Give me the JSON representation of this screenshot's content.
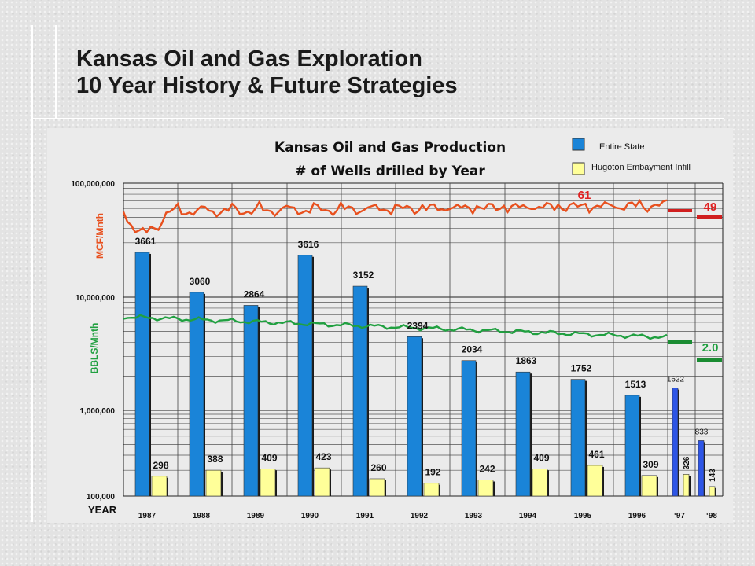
{
  "slide": {
    "title_line1": "Kansas Oil and Gas Exploration",
    "title_line2": "10 Year History & Future Strategies"
  },
  "chart_data": {
    "type": "bar",
    "title": "Kansas Oil and Gas Production",
    "subtitle": "# of Wells drilled by Year",
    "xlabel": "YEAR",
    "ylabel_gas": "MCF/Mnth",
    "ylabel_oil": "BBLS/Mnth",
    "y_scale": "log",
    "ylim": [
      100000,
      100000000
    ],
    "y_tick_labels": [
      "100,000",
      "1,000,000",
      "10,000,000",
      "100,000,000"
    ],
    "grid": true,
    "legend_position": "top-right",
    "categories": [
      "1987",
      "1988",
      "1989",
      "1990",
      "1991",
      "1992",
      "1993",
      "1994",
      "1995",
      "1996",
      "‘97",
      "‘98"
    ],
    "series": [
      {
        "name": "Entire State",
        "color": "#1a84d8",
        "values": [
          3661,
          3060,
          2864,
          3616,
          3152,
          2394,
          2034,
          1863,
          1752,
          1513,
          1622,
          833
        ],
        "value_labels": [
          "3661",
          "3060",
          "2864",
          "3616",
          "3152",
          "2394",
          "2034",
          "1863",
          "1752",
          "1513",
          "1622",
          "833"
        ]
      },
      {
        "name": "Hugoton Embayment Infill",
        "color": "#ffff99",
        "values": [
          298,
          388,
          409,
          423,
          260,
          192,
          242,
          409,
          461,
          309,
          326,
          143
        ],
        "value_labels": [
          "298",
          "388",
          "409",
          "423",
          "260",
          "192",
          "242",
          "409",
          "461",
          "309",
          "326",
          "143"
        ]
      }
    ],
    "gas_line": {
      "color": "#e8501e",
      "label": "MCF/Mnth",
      "annotation_1997": "61",
      "annotation_1998": "49"
    },
    "oil_line": {
      "color": "#20a040",
      "label": "BBLS/Mnth",
      "annotation_1998": "2.0"
    }
  }
}
